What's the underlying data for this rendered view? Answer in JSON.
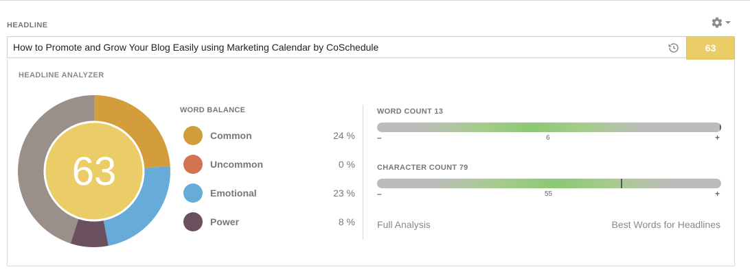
{
  "header": {
    "section_label": "HEADLINE",
    "settings_icon": "gear-icon",
    "dropdown_icon": "caret-down-icon"
  },
  "headline": {
    "value": "How to Promote and Grow Your Blog Easily using Marketing Calendar by CoSchedule",
    "history_icon": "history-icon",
    "score": "63"
  },
  "analyzer": {
    "title": "HEADLINE ANALYZER",
    "score": "63",
    "score_color": "#ebcd67",
    "word_balance": {
      "title": "WORD BALANCE",
      "items": [
        {
          "label": "Common",
          "percent": "24 %",
          "value": 24,
          "color": "#d39d3e"
        },
        {
          "label": "Uncommon",
          "percent": "0 %",
          "value": 0,
          "color": "#d47352"
        },
        {
          "label": "Emotional",
          "percent": "23 %",
          "value": 23,
          "color": "#67acd9"
        },
        {
          "label": "Power",
          "percent": "8 %",
          "value": 8,
          "color": "#6b5060"
        }
      ],
      "remainder_color": "#9b8f89"
    },
    "word_count": {
      "title": "WORD COUNT",
      "value": "13",
      "ideal": "6",
      "minus": "–",
      "plus": "+"
    },
    "character_count": {
      "title": "CHARACTER COUNT",
      "value": "79",
      "ideal": "55",
      "minus": "–",
      "plus": "+"
    },
    "links": {
      "full_analysis": "Full Analysis",
      "best_words": "Best Words for Headlines"
    }
  }
}
